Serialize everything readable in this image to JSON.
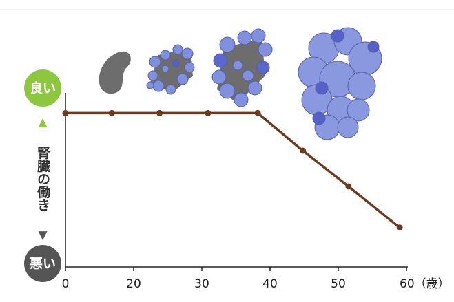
{
  "chart_data": {
    "type": "line",
    "y_top_label": "良い",
    "y_bottom_label": "悪い",
    "y_up_arrow": "▲",
    "y_down_arrow": "▼",
    "y_axis_label": "腎臓の働き",
    "x": [
      0,
      13.6,
      23.8,
      30.9,
      38.2,
      44.8,
      51.5,
      59
    ],
    "series": [
      {
        "color": "#6b3a1f",
        "values": [
          86,
          86,
          86,
          86,
          86,
          65,
          45,
          22
        ]
      }
    ],
    "xlim": [
      0,
      60
    ],
    "xticks": [
      0,
      20,
      30,
      40,
      50,
      {
        "value": 60,
        "label": "60（歳）"
      }
    ],
    "ylim": [
      0,
      100
    ]
  }
}
